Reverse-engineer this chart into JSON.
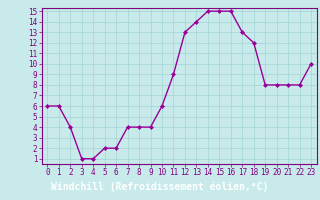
{
  "x": [
    0,
    1,
    2,
    3,
    4,
    5,
    6,
    7,
    8,
    9,
    10,
    11,
    12,
    13,
    14,
    15,
    16,
    17,
    18,
    19,
    20,
    21,
    22,
    23
  ],
  "y": [
    6,
    6,
    4,
    1,
    1,
    2,
    2,
    4,
    4,
    4,
    6,
    9,
    13,
    14,
    15,
    15,
    15,
    13,
    12,
    8,
    8,
    8,
    8,
    10
  ],
  "line_color": "#990099",
  "marker": "D",
  "marker_size": 2.0,
  "bg_color": "#c8eaea",
  "grid_color": "#a8d8d8",
  "xlabel": "Windchill (Refroidissement éolien,°C)",
  "xlabel_color": "#ffffff",
  "xlabel_bg": "#800080",
  "ylim_min": 1,
  "ylim_max": 15,
  "xlim_min": 0,
  "xlim_max": 23,
  "yticks": [
    1,
    2,
    3,
    4,
    5,
    6,
    7,
    8,
    9,
    10,
    11,
    12,
    13,
    14,
    15
  ],
  "xticks": [
    0,
    1,
    2,
    3,
    4,
    5,
    6,
    7,
    8,
    9,
    10,
    11,
    12,
    13,
    14,
    15,
    16,
    17,
    18,
    19,
    20,
    21,
    22,
    23
  ],
  "tick_color": "#800080",
  "tick_fontsize": 5.5,
  "xlabel_fontsize": 7.0,
  "spine_color": "#800080",
  "line_width": 1.0
}
